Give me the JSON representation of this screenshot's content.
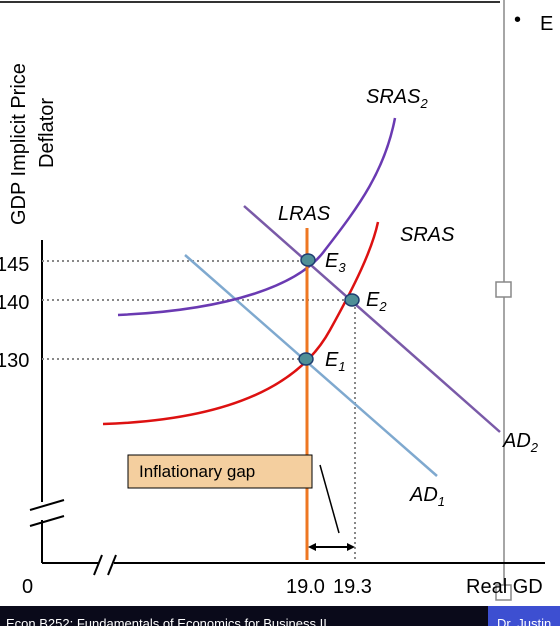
{
  "y_axis": {
    "label_line1": "GDP Implicit Price",
    "label_line2": "Deflator"
  },
  "x_axis": {
    "origin": "0",
    "label": "Real GD"
  },
  "price_ticks": [
    "145",
    "140",
    "130"
  ],
  "quantity_ticks": [
    "19.0",
    "19.3"
  ],
  "curves": {
    "sras2": {
      "name": "SRAS",
      "sub": "2",
      "color": "#6a3ab2"
    },
    "sras": {
      "name": "SRAS",
      "sub": "",
      "color": "#dd1111"
    },
    "lras": {
      "name": "LRAS",
      "sub": "",
      "color": "#ee7722"
    },
    "ad1": {
      "name": "AD",
      "sub": "1",
      "color": "#7fa9cf"
    },
    "ad2": {
      "name": "AD",
      "sub": "2",
      "color": "#7a5aa8"
    }
  },
  "equilibria": [
    {
      "name": "E",
      "sub": "3"
    },
    {
      "name": "E",
      "sub": "2"
    },
    {
      "name": "E",
      "sub": "1"
    }
  ],
  "gap_label": "Inflationary gap",
  "bullet": {
    "symbol": "•",
    "text": "E"
  },
  "footer": {
    "left_text": "Econ B252: Fundamentals of Economics for Business II",
    "right_text": "Dr. Justin"
  }
}
